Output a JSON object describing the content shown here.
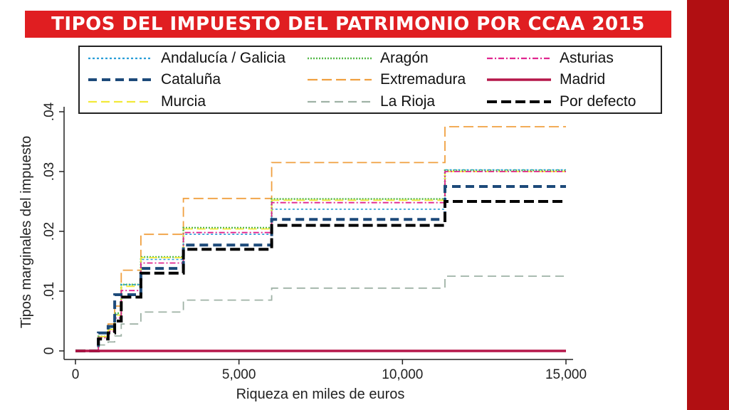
{
  "header": {
    "title": "TIPOS DEL IMPUESTO DEL PATRIMONIO POR CCAA 2015",
    "title_bg": "#e01e21",
    "side_band_color": "#b10f12"
  },
  "chart_data": {
    "type": "line",
    "title": "TIPOS DEL IMPUESTO DEL PATRIMONIO POR CCAA 2015",
    "xlabel": "Riqueza en miles de euros",
    "ylabel": "Tipos marginales del impuesto",
    "xlim": [
      0,
      15000
    ],
    "ylim": [
      0,
      0.04
    ],
    "xticks": [
      0,
      5000,
      10000,
      15000
    ],
    "xtick_labels": [
      "0",
      "5,000",
      "10,000",
      "15,000"
    ],
    "yticks": [
      0,
      0.01,
      0.02,
      0.03,
      0.04
    ],
    "ytick_labels": [
      "0",
      ".01",
      ".02",
      ".03",
      ".04"
    ],
    "legend_position": "top",
    "series": [
      {
        "name": "Andalucía / Galicia",
        "color": "#2a9ed8",
        "dash": "3,3",
        "width": 1.6,
        "x": [
          0,
          700,
          700,
          1000,
          1000,
          1200,
          1200,
          1400,
          1400,
          2000,
          2000,
          3300,
          3300,
          6000,
          6000,
          11300,
          11300,
          15000
        ],
        "y": [
          0,
          0,
          0.0024,
          0.0024,
          0.0037,
          0.0037,
          0.0061,
          0.0061,
          0.0111,
          0.0111,
          0.0153,
          0.0153,
          0.0195,
          0.0195,
          0.0237,
          0.0237,
          0.0303,
          0.0303
        ]
      },
      {
        "name": "Aragón",
        "color": "#55b94a",
        "dash": "2,2",
        "width": 2.6,
        "x": [
          0,
          700,
          700,
          1000,
          1000,
          1200,
          1200,
          1400,
          1400,
          2000,
          2000,
          3300,
          3300,
          6000,
          6000,
          11300,
          11300,
          15000
        ],
        "y": [
          0,
          0,
          0.0024,
          0.0024,
          0.004,
          0.004,
          0.0063,
          0.0063,
          0.0111,
          0.0111,
          0.0157,
          0.0157,
          0.0206,
          0.0206,
          0.0254,
          0.0254,
          0.0302,
          0.0302
        ]
      },
      {
        "name": "Asturias",
        "color": "#e0268f",
        "dash": "8,3,2,3",
        "width": 1.8,
        "x": [
          0,
          700,
          700,
          1000,
          1000,
          1200,
          1200,
          1400,
          1400,
          2000,
          2000,
          3300,
          3300,
          6000,
          6000,
          11300,
          11300,
          15000
        ],
        "y": [
          0,
          0,
          0.0022,
          0.0022,
          0.0033,
          0.0033,
          0.0055,
          0.0055,
          0.0101,
          0.0101,
          0.0147,
          0.0147,
          0.0198,
          0.0198,
          0.0248,
          0.0248,
          0.03,
          0.03
        ]
      },
      {
        "name": "Cataluña",
        "color": "#1d4a7a",
        "dash": "12,7",
        "width": 4,
        "x": [
          0,
          700,
          700,
          1000,
          1000,
          1200,
          1200,
          1400,
          1400,
          2000,
          2000,
          3300,
          3300,
          6000,
          6000,
          11300,
          11300,
          15000
        ],
        "y": [
          0,
          0,
          0.003,
          0.003,
          0.0041,
          0.0041,
          0.0094,
          0.0094,
          0.0094,
          0.0094,
          0.0138,
          0.0138,
          0.0177,
          0.0177,
          0.022,
          0.022,
          0.0275,
          0.0275
        ]
      },
      {
        "name": "Extremadura",
        "color": "#f0a040",
        "dash": "14,6",
        "width": 1.8,
        "x": [
          0,
          700,
          700,
          1000,
          1000,
          1200,
          1200,
          1400,
          1400,
          2000,
          2000,
          3300,
          3300,
          6000,
          6000,
          11300,
          11300,
          15000
        ],
        "y": [
          0,
          0,
          0.003,
          0.003,
          0.0045,
          0.0045,
          0.0075,
          0.0075,
          0.0135,
          0.0135,
          0.0195,
          0.0195,
          0.0255,
          0.0255,
          0.0315,
          0.0315,
          0.0375,
          0.0375
        ]
      },
      {
        "name": "Madrid",
        "color": "#b5174a",
        "dash": "",
        "width": 3.5,
        "x": [
          0,
          15000
        ],
        "y": [
          0,
          0
        ]
      },
      {
        "name": "Murcia",
        "color": "#f2e93a",
        "dash": "12,6",
        "width": 1.8,
        "x": [
          0,
          700,
          700,
          1000,
          1000,
          1200,
          1200,
          1400,
          1400,
          2000,
          2000,
          3300,
          3300,
          6000,
          6000,
          11300,
          11300,
          15000
        ],
        "y": [
          0,
          0,
          0.0024,
          0.0024,
          0.0036,
          0.0036,
          0.006,
          0.006,
          0.0108,
          0.0108,
          0.0156,
          0.0156,
          0.0204,
          0.0204,
          0.0252,
          0.0252,
          0.03,
          0.03
        ]
      },
      {
        "name": "La Rioja",
        "color": "#9fb2a6",
        "dash": "12,7",
        "width": 1.8,
        "x": [
          0,
          700,
          700,
          1000,
          1000,
          1200,
          1200,
          1400,
          1400,
          2000,
          2000,
          3300,
          3300,
          6000,
          6000,
          11300,
          11300,
          15000
        ],
        "y": [
          0,
          0,
          0.001,
          0.001,
          0.0015,
          0.0015,
          0.0025,
          0.0025,
          0.0045,
          0.0045,
          0.0065,
          0.0065,
          0.0085,
          0.0085,
          0.0105,
          0.0105,
          0.0125,
          0.0125
        ]
      },
      {
        "name": "Por defecto",
        "color": "#000000",
        "dash": "14,6",
        "width": 4,
        "x": [
          0,
          700,
          700,
          1000,
          1000,
          1200,
          1200,
          1400,
          1400,
          2000,
          2000,
          3300,
          3300,
          6000,
          6000,
          11300,
          11300,
          15000
        ],
        "y": [
          0,
          0,
          0.002,
          0.002,
          0.003,
          0.003,
          0.005,
          0.005,
          0.009,
          0.009,
          0.013,
          0.013,
          0.017,
          0.017,
          0.021,
          0.021,
          0.025,
          0.025
        ]
      }
    ]
  }
}
